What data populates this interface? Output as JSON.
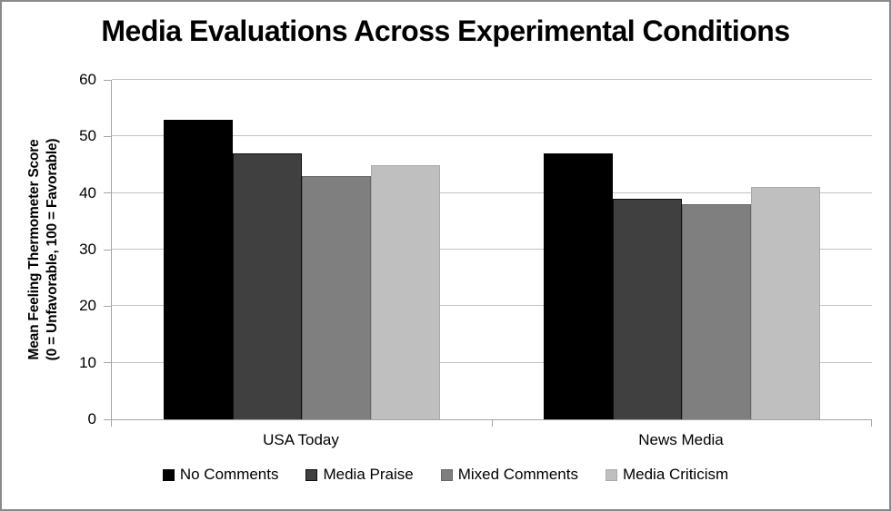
{
  "chart_data": {
    "type": "bar",
    "title": "Media Evaluations Across Experimental Conditions",
    "ylabel_line1": "Mean Feeling Thermometer Score",
    "ylabel_line2": "(0 = Unfavorable, 100 = Favorable)",
    "xlabel": "",
    "categories": [
      "USA Today",
      "News Media"
    ],
    "series": [
      {
        "name": "No Comments",
        "color": "#000000",
        "border_color": "#000000",
        "values": [
          53,
          47
        ]
      },
      {
        "name": "Media Praise",
        "color": "#404040",
        "border_color": "#0d0d0d",
        "values": [
          47,
          39
        ]
      },
      {
        "name": "Mixed Comments",
        "color": "#7f7f7f",
        "border_color": "#666666",
        "values": [
          43,
          38
        ]
      },
      {
        "name": "Media Criticism",
        "color": "#bfbfbf",
        "border_color": "#a9a9a9",
        "values": [
          45,
          41
        ]
      }
    ],
    "ylim": [
      0,
      60
    ],
    "yticks": [
      0,
      10,
      20,
      30,
      40,
      50,
      60
    ],
    "grid": true,
    "legend_position": "bottom",
    "gridline_color": "#c3c3c3",
    "axis_color": "#a3a3a3",
    "frame_border_color": "#8a8a8a",
    "background_color": "#ffffff"
  }
}
